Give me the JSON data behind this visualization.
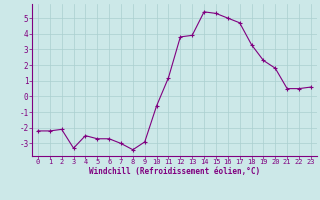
{
  "x": [
    0,
    1,
    2,
    3,
    4,
    5,
    6,
    7,
    8,
    9,
    10,
    11,
    12,
    13,
    14,
    15,
    16,
    17,
    18,
    19,
    20,
    21,
    22,
    23
  ],
  "y": [
    -2.2,
    -2.2,
    -2.1,
    -3.3,
    -2.5,
    -2.7,
    -2.7,
    -3.0,
    -3.4,
    -2.9,
    -0.6,
    1.2,
    3.8,
    3.9,
    5.4,
    5.3,
    5.0,
    4.7,
    3.3,
    2.3,
    1.8,
    0.5,
    0.5,
    0.6
  ],
  "line_color": "#800080",
  "marker": "+",
  "marker_color": "#800080",
  "bg_color": "#cce8e8",
  "grid_color": "#aacfcf",
  "xlabel": "Windchill (Refroidissement éolien,°C)",
  "xlabel_color": "#800080",
  "tick_color": "#800080",
  "spine_color": "#800080",
  "xlim": [
    -0.5,
    23.5
  ],
  "ylim": [
    -3.8,
    5.9
  ],
  "yticks": [
    -3,
    -2,
    -1,
    0,
    1,
    2,
    3,
    4,
    5
  ],
  "xticks": [
    0,
    1,
    2,
    3,
    4,
    5,
    6,
    7,
    8,
    9,
    10,
    11,
    12,
    13,
    14,
    15,
    16,
    17,
    18,
    19,
    20,
    21,
    22,
    23
  ],
  "xtick_labels": [
    "0",
    "1",
    "2",
    "3",
    "4",
    "5",
    "6",
    "7",
    "8",
    "9",
    "10",
    "11",
    "12",
    "13",
    "14",
    "15",
    "16",
    "17",
    "18",
    "19",
    "20",
    "21",
    "22",
    "23"
  ],
  "ytick_labels": [
    "-3",
    "-2",
    "-1",
    "0",
    "1",
    "2",
    "3",
    "4",
    "5"
  ]
}
